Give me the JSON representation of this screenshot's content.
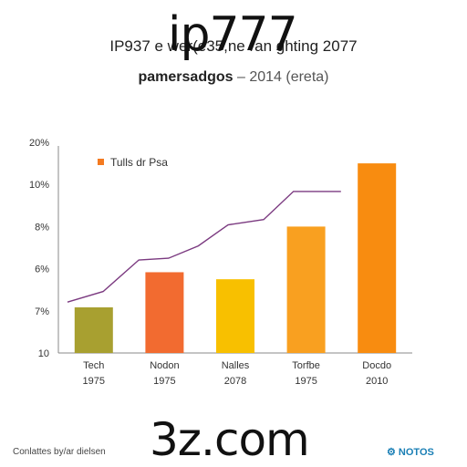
{
  "chart_data": {
    "type": "bar",
    "title": "IP937 e wer(e35,ne ran ghting 2077",
    "subtitle_main": "pamersadgos",
    "subtitle_extra": " – 2014 (ereta)",
    "xlabel": "",
    "ylabel": "",
    "y_tick_labels": [
      "10",
      "7%",
      "6%",
      "8%",
      "10%",
      "20%"
    ],
    "legend": {
      "label": "Tulls dr Psa",
      "color": "#f47a20",
      "placement": "top-left"
    },
    "categories": [
      {
        "name": "Tech",
        "year": "1975"
      },
      {
        "name": "Nodon",
        "year": "1975"
      },
      {
        "name": "Nalles",
        "year": "2078"
      },
      {
        "name": "Torfbe",
        "year": "1975"
      },
      {
        "name": "Docdo",
        "year": "2010"
      }
    ],
    "values": [
      2.6,
      4.6,
      4.2,
      7.2,
      10.8
    ],
    "ylim": [
      0,
      12
    ],
    "bar_colors": [
      "#a8a030",
      "#f26b30",
      "#f8c000",
      "#f9a020",
      "#f88c10"
    ],
    "line_series": {
      "color": "#7b3a80",
      "points": [
        [
          0,
          2.9
        ],
        [
          0.6,
          3.5
        ],
        [
          1.2,
          5.3
        ],
        [
          1.7,
          5.4
        ],
        [
          2.2,
          6.1
        ],
        [
          2.7,
          7.3
        ],
        [
          3.3,
          7.6
        ],
        [
          3.8,
          9.2
        ],
        [
          4.6,
          9.2
        ]
      ]
    },
    "grid": false
  },
  "watermarks": {
    "top": "ip777",
    "bottom": "3z.com"
  },
  "footer": {
    "left": "Conlattes by/ar dielsen",
    "right": "⚙ NOTOS"
  },
  "colors": {
    "axis": "#888888",
    "text": "#222222"
  }
}
